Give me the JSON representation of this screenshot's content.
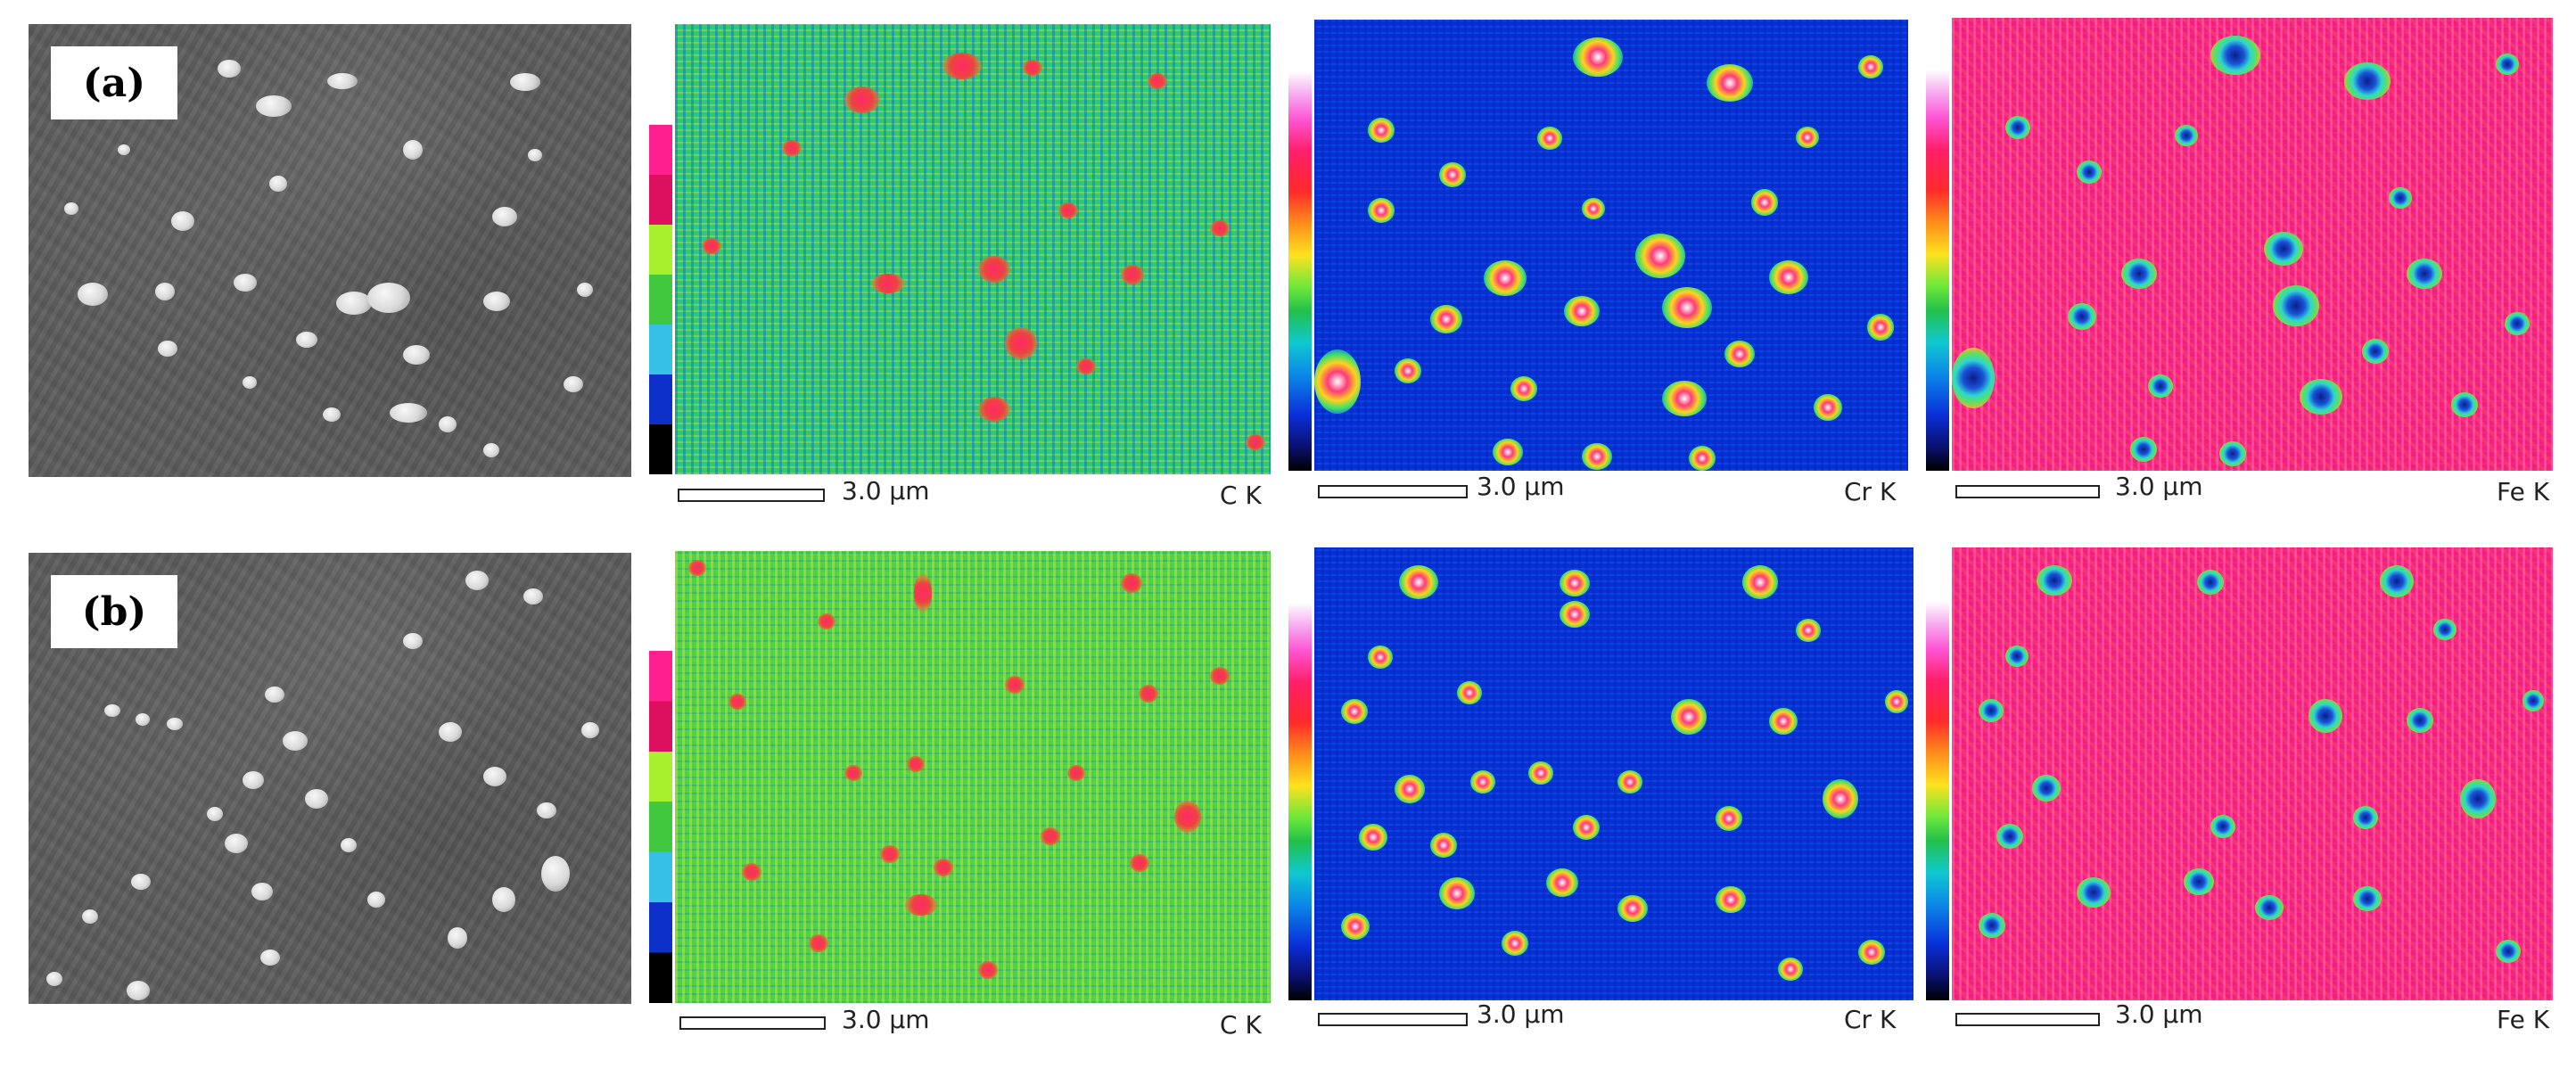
{
  "rows": [
    {
      "label": "(a)",
      "maps": [
        {
          "scale": "3.0 μm",
          "element": "C K"
        },
        {
          "scale": "3.0 μm",
          "element": "Cr K"
        },
        {
          "scale": "3.0 μm",
          "element": "Fe K"
        }
      ]
    },
    {
      "label": "(b)",
      "maps": [
        {
          "scale": "3.0 μm",
          "element": "C K"
        },
        {
          "scale": "3.0 μm",
          "element": "Cr K"
        },
        {
          "scale": "3.0 μm",
          "element": "Fe K"
        }
      ]
    }
  ]
}
